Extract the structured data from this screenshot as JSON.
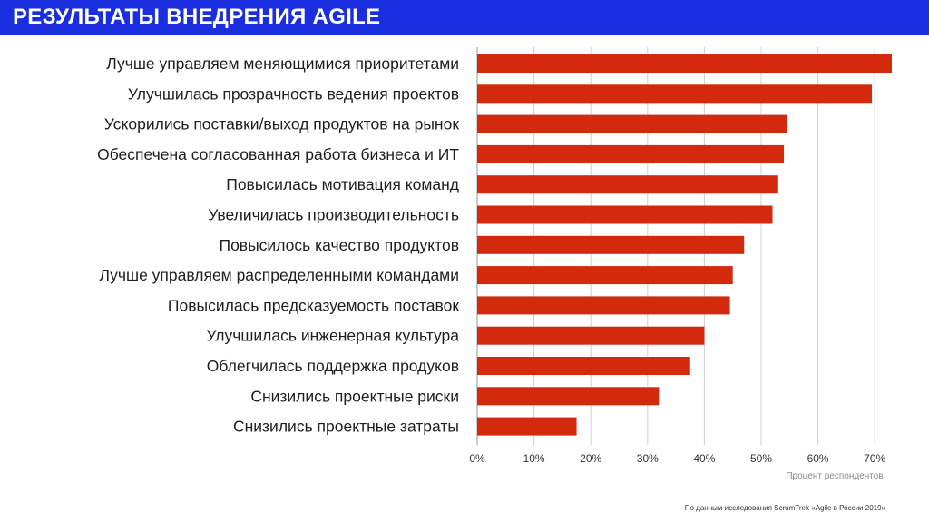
{
  "header": {
    "title": "РЕЗУЛЬТАТЫ ВНЕДРЕНИЯ AGILE"
  },
  "colors": {
    "header_bg": "#1a2ee0",
    "bar": "#d32a0e",
    "grid": "#d0d0d0"
  },
  "chart_data": {
    "type": "bar",
    "orientation": "horizontal",
    "title": "",
    "xlabel": "Процент респондентов",
    "ylabel": "",
    "xlim": [
      0,
      70
    ],
    "grid": true,
    "categories": [
      "Лучше управляем меняющимися приоритетами",
      "Улучшилась прозрачность ведения проектов",
      "Ускорились поставки/выход продуктов на рынок",
      "Обеспечена согласованная работа бизнеса и ИТ",
      "Повысилась мотивация команд",
      "Увеличилась производительность",
      "Повысилось качество продуктов",
      "Лучше управляем распределенными командами",
      "Повысилась предсказуемость поставок",
      "Улучшилась инженерная культура",
      "Облегчилась поддержка продуков",
      "Снизились проектные риски",
      "Снизились проектные затраты"
    ],
    "values": [
      73,
      69.5,
      54.5,
      54,
      53,
      52,
      47,
      45,
      44.5,
      40,
      37.5,
      32,
      17.5
    ],
    "tick_labels": [
      "0%",
      "10%",
      "20%",
      "30%",
      "40%",
      "50%",
      "60%",
      "70%"
    ]
  },
  "footer": {
    "source": "По данным исследования ScrumTrek «Agile в России 2019»"
  }
}
